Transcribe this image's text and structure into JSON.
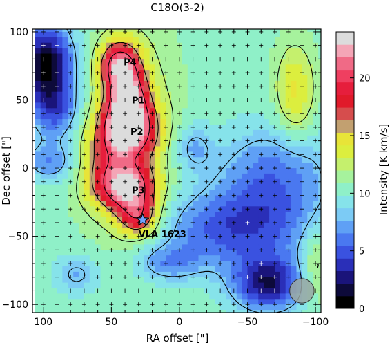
{
  "chart_data": {
    "type": "heatmap",
    "title": "C18O(3-2)",
    "xlabel": "RA offset  [\"]",
    "ylabel": "Dec offset  [\"]",
    "xlim": [
      108,
      -104
    ],
    "ylim": [
      -106,
      102
    ],
    "x_ticks": [
      100,
      50,
      0,
      -50,
      -100
    ],
    "y_ticks": [
      100,
      50,
      0,
      -50,
      -100
    ],
    "x_tick_labels": [
      "100",
      "50",
      "0",
      "−50",
      "−100"
    ],
    "y_tick_labels": [
      "100",
      "50",
      "0",
      "−50",
      "−100"
    ],
    "colorbar": {
      "label": "Intensity [K km/s]",
      "range": [
        0,
        24
      ],
      "ticks": [
        0,
        5,
        10,
        15,
        20
      ],
      "tick_labels": [
        "0",
        "5",
        "10",
        "15",
        "20"
      ],
      "colors": [
        "#000000",
        "#0d0a3a",
        "#1a147a",
        "#2a2fb8",
        "#3a52e0",
        "#4a78f0",
        "#5fa0f5",
        "#7ccbf5",
        "#86e3ea",
        "#8ff0c8",
        "#a6f29d",
        "#c5f06d",
        "#dcee3e",
        "#e8e438",
        "#c2a070",
        "#d64d4d",
        "#e01a2a",
        "#e61e3c",
        "#ef3f60",
        "#f06a86",
        "#f4a5b6",
        "#dcdcdc"
      ]
    },
    "peaks": [
      {
        "label": "P4",
        "x": 43,
        "y": 78
      },
      {
        "label": "P1",
        "x": 37,
        "y": 50
      },
      {
        "label": "P2",
        "x": 38,
        "y": 27
      },
      {
        "label": "P3",
        "x": 37,
        "y": -16
      },
      {
        "label": "VLA 1623",
        "x": 27,
        "y": -38
      }
    ],
    "beam": {
      "x": -90,
      "y": -90,
      "diameter": 18
    },
    "grid": "cross markers every 10 arcsec",
    "legend": "colorbar right"
  }
}
